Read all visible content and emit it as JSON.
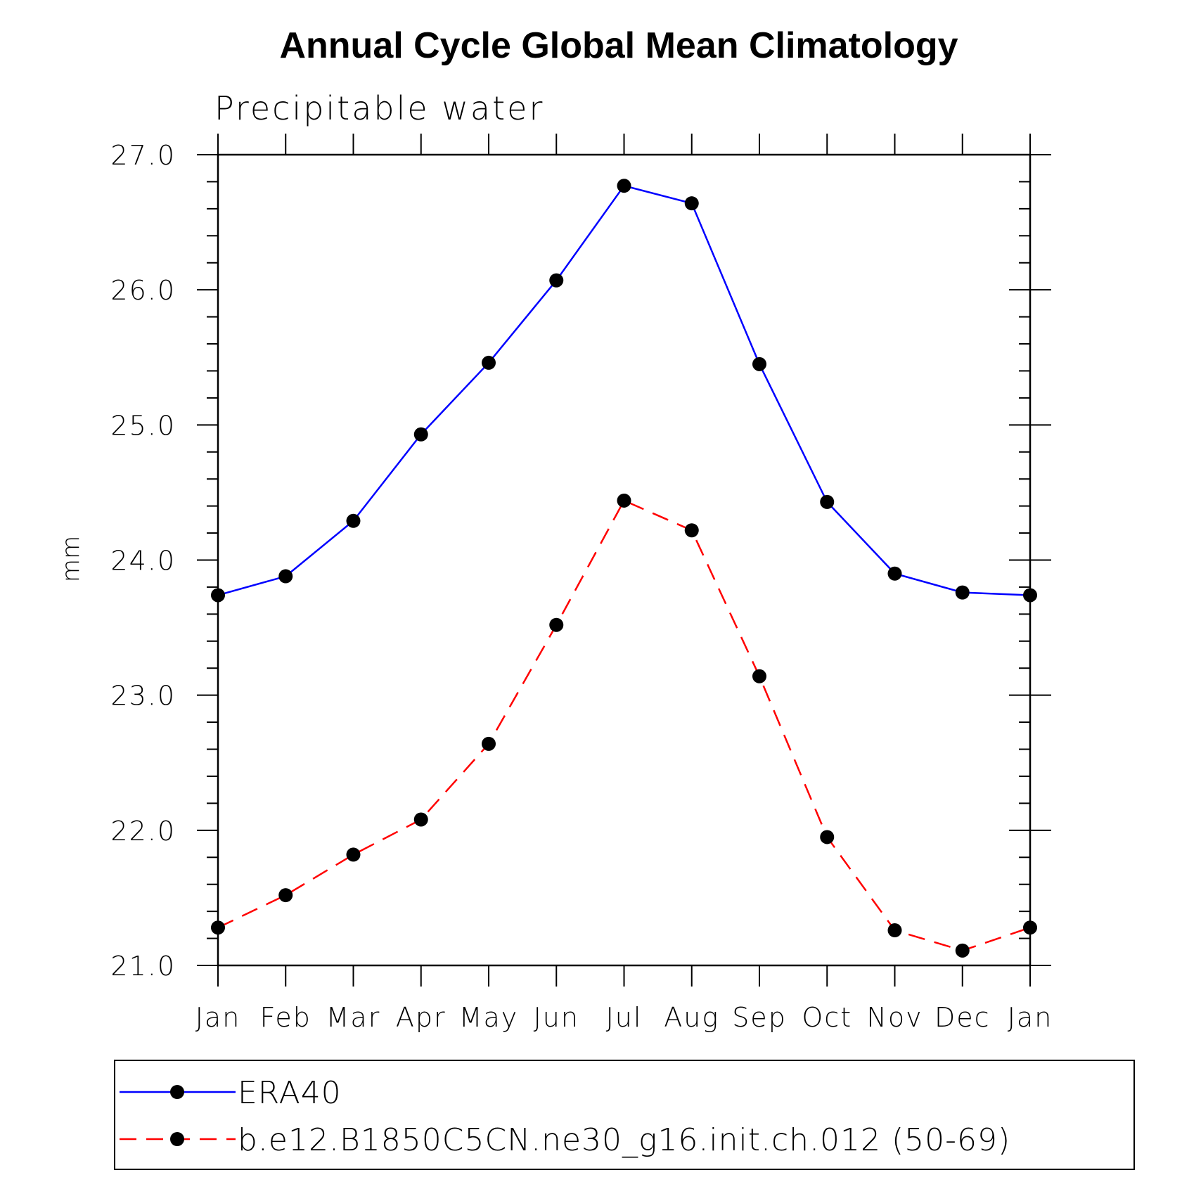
{
  "chart_data": {
    "type": "line",
    "title": "Annual Cycle Global Mean Climatology",
    "subtitle": "Precipitable water",
    "xlabel": "",
    "ylabel": "mm",
    "categories": [
      "Jan",
      "Feb",
      "Mar",
      "Apr",
      "May",
      "Jun",
      "Jul",
      "Aug",
      "Sep",
      "Oct",
      "Nov",
      "Dec",
      "Jan"
    ],
    "ylim": [
      21.0,
      27.0
    ],
    "yticks": [
      "21.0",
      "22.0",
      "23.0",
      "24.0",
      "25.0",
      "26.0",
      "27.0"
    ],
    "series": [
      {
        "name": "ERA40",
        "color": "#0000ff",
        "dash": "solid",
        "marker": "filled-circle",
        "values": [
          23.74,
          23.88,
          24.29,
          24.93,
          25.46,
          26.07,
          26.77,
          26.64,
          25.45,
          24.43,
          23.9,
          23.76,
          23.74
        ]
      },
      {
        "name": "b.e12.B1850C5CN.ne30_g16.init.ch.012 (50-69)",
        "color": "#ff0000",
        "dash": "dashed",
        "marker": "filled-circle",
        "values": [
          21.28,
          21.52,
          21.82,
          22.08,
          22.64,
          23.52,
          24.44,
          24.22,
          23.14,
          21.95,
          21.26,
          21.11,
          21.28
        ]
      }
    ],
    "legend_position": "bottom",
    "grid": false
  }
}
